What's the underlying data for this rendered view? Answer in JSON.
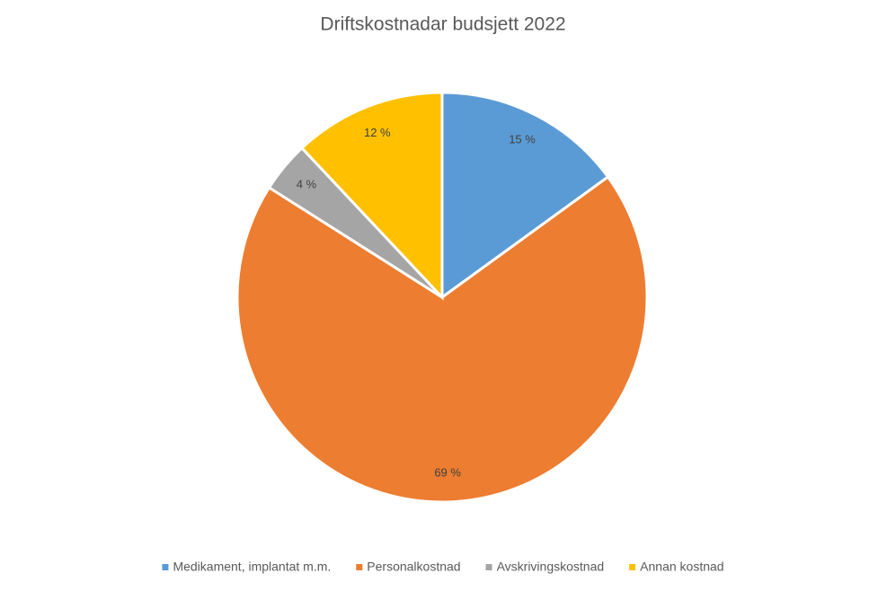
{
  "chart_data": {
    "type": "pie",
    "title": "Driftskostnadar budsjett 2022",
    "categories": [
      "Medikament, implantat m.m.",
      "Personalkostnad",
      "Avskrivingskostnad",
      "Annan kostnad"
    ],
    "values": [
      15,
      69,
      4,
      12
    ],
    "value_labels": [
      "15 %",
      "69 %",
      "4 %",
      "12 %"
    ],
    "colors": [
      "#5b9bd5",
      "#ed7d31",
      "#a5a5a5",
      "#ffc000"
    ],
    "legend": "bottom"
  }
}
